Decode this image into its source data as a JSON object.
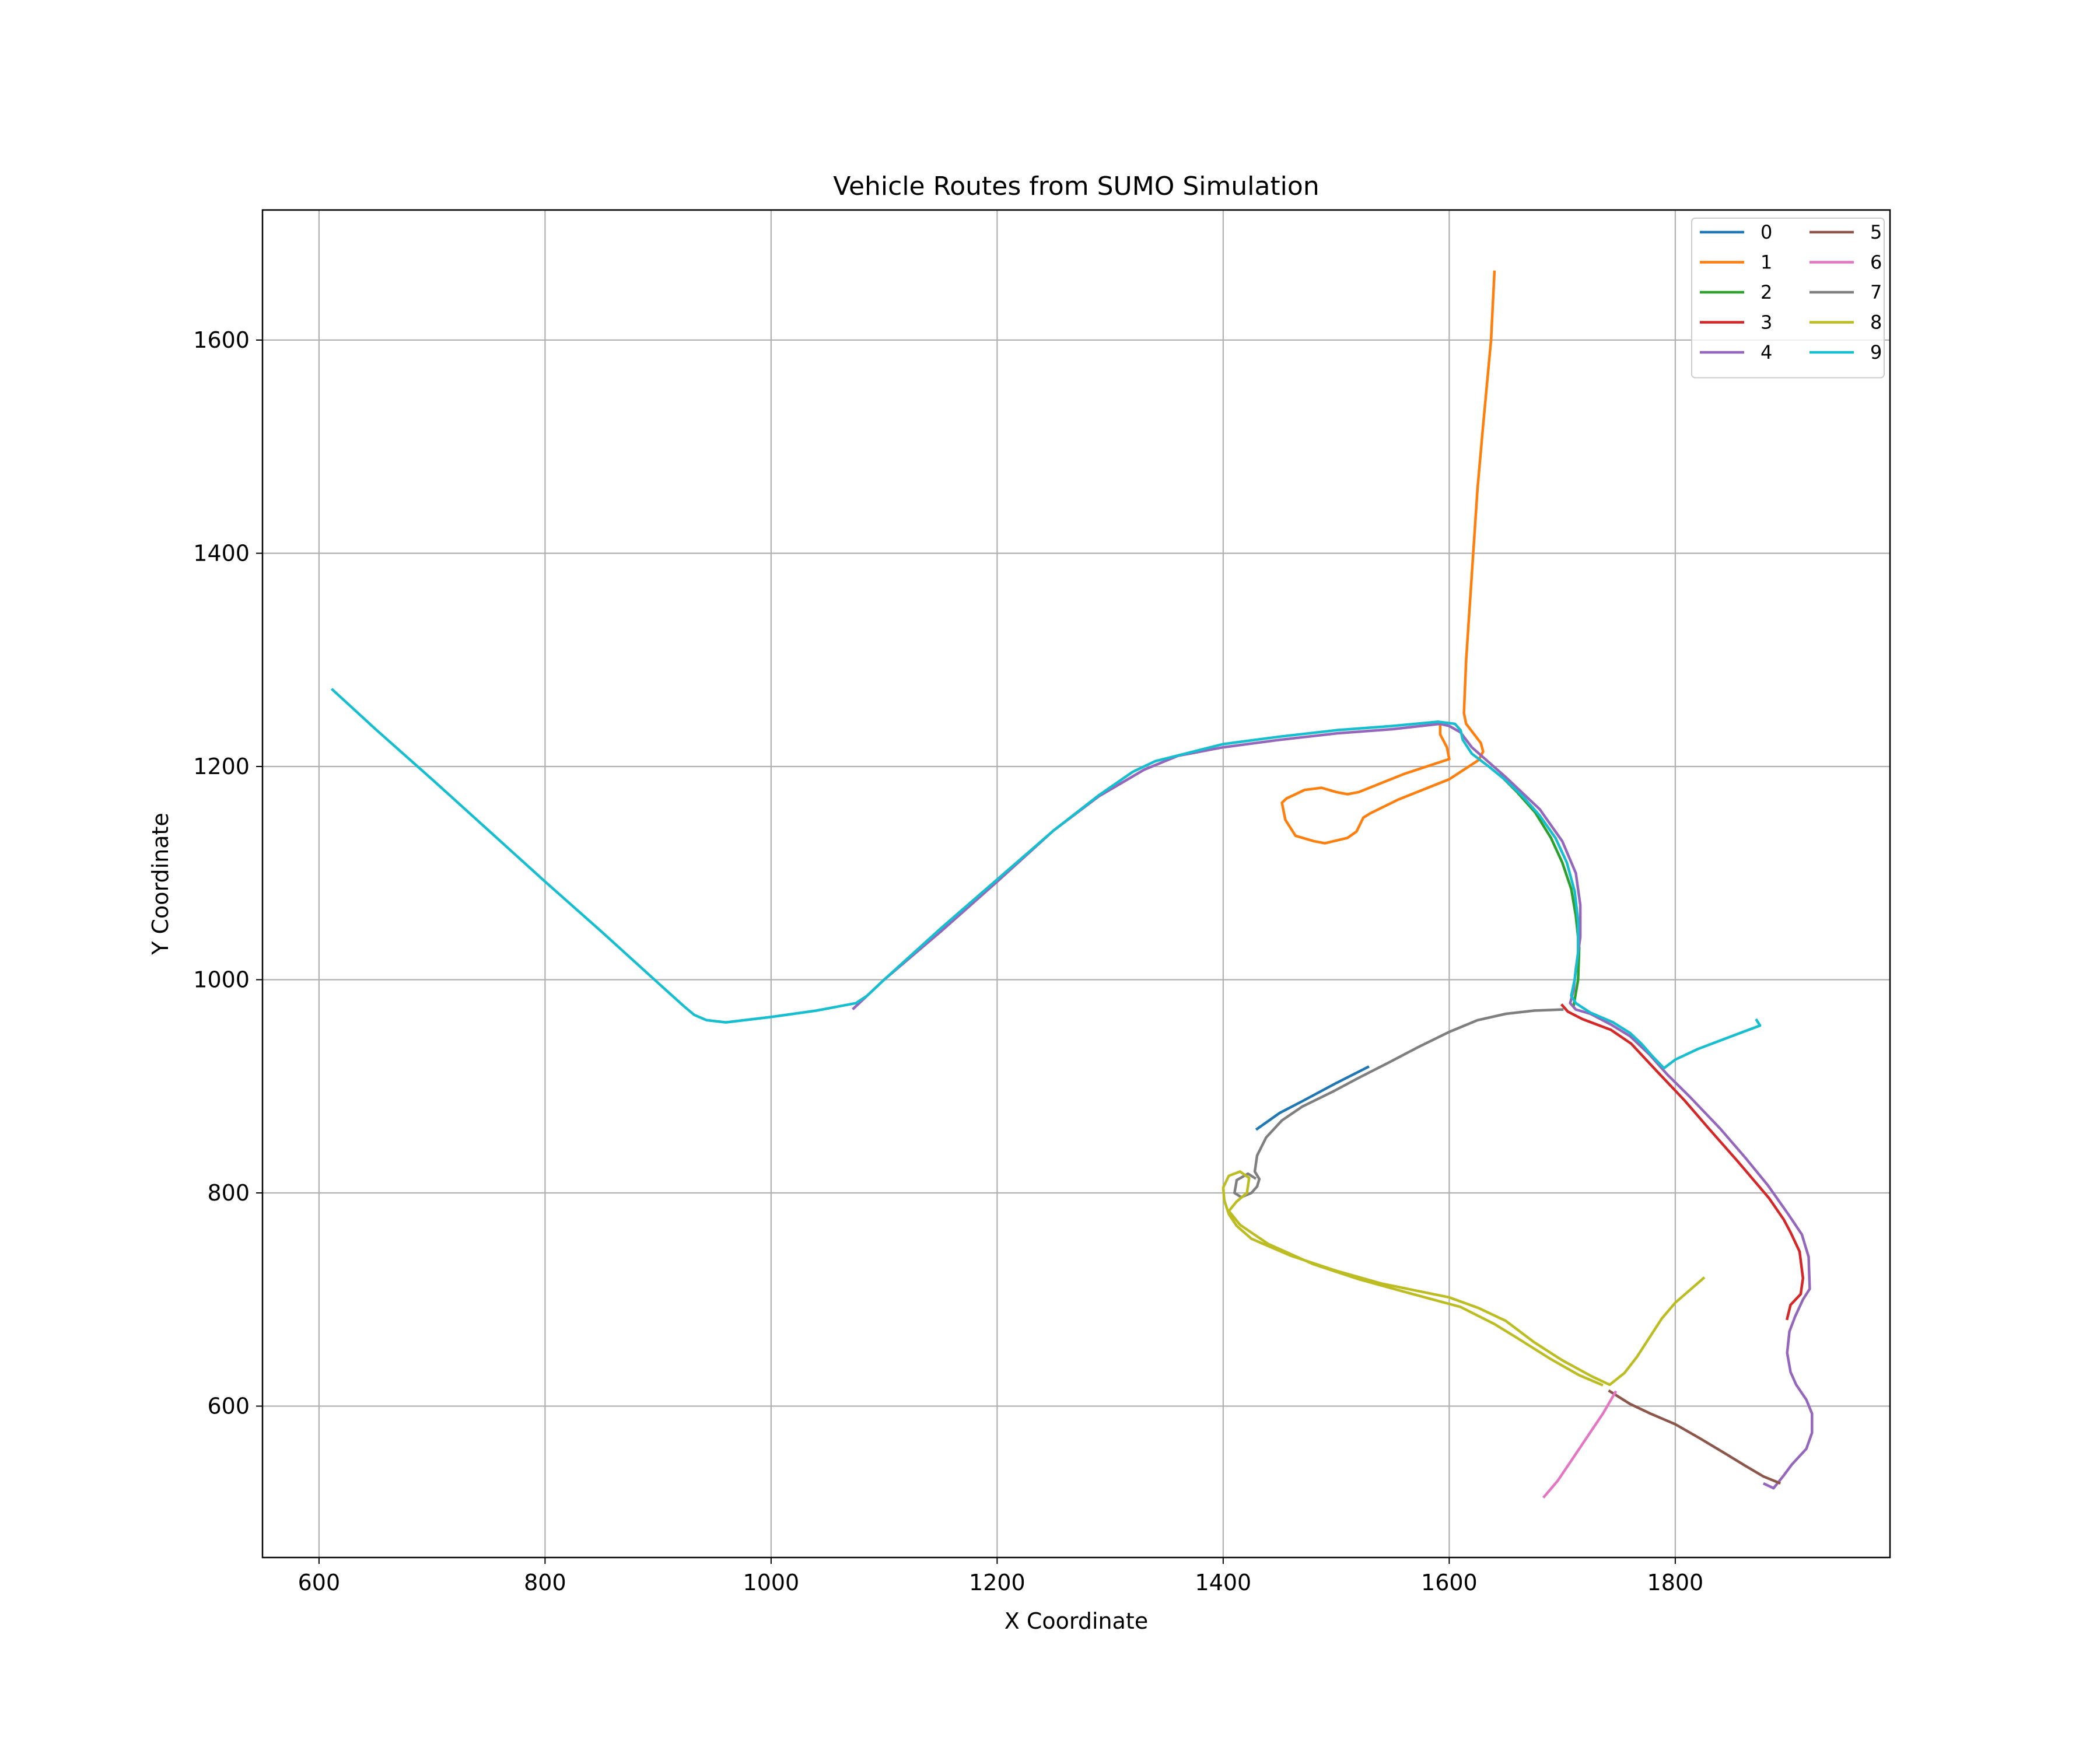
{
  "chart_data": {
    "type": "line",
    "title": "Vehicle Routes from SUMO Simulation",
    "xlabel": "X Coordinate",
    "ylabel": "Y Coordinate",
    "xlim": [
      550,
      1990
    ],
    "ylim": [
      458,
      1722
    ],
    "xticks": [
      600,
      800,
      1000,
      1200,
      1400,
      1600,
      1800
    ],
    "yticks": [
      600,
      800,
      1000,
      1200,
      1400,
      1600
    ],
    "grid": true,
    "legend": {
      "position": "top-right",
      "columns": 2
    },
    "series": [
      {
        "name": "0",
        "color": "#1f77b4",
        "points": [
          [
            1528,
            918
          ],
          [
            1500,
            903
          ],
          [
            1470,
            886
          ],
          [
            1450,
            875
          ],
          [
            1430,
            860
          ]
        ]
      },
      {
        "name": "1",
        "color": "#ff7f0e",
        "points": [
          [
            1640,
            1664
          ],
          [
            1637,
            1600
          ],
          [
            1630,
            1520
          ],
          [
            1625,
            1460
          ],
          [
            1620,
            1380
          ],
          [
            1615,
            1300
          ],
          [
            1613,
            1250
          ],
          [
            1615,
            1240
          ],
          [
            1628,
            1222
          ],
          [
            1630,
            1214
          ],
          [
            1626,
            1206
          ],
          [
            1600,
            1188
          ],
          [
            1555,
            1169
          ],
          [
            1530,
            1156
          ],
          [
            1524,
            1152
          ],
          [
            1518,
            1139
          ],
          [
            1510,
            1133
          ],
          [
            1490,
            1128
          ],
          [
            1480,
            1130
          ],
          [
            1464,
            1135
          ],
          [
            1455,
            1150
          ],
          [
            1452,
            1166
          ],
          [
            1456,
            1170
          ],
          [
            1472,
            1178
          ],
          [
            1487,
            1180
          ],
          [
            1500,
            1176
          ],
          [
            1510,
            1174
          ],
          [
            1520,
            1176
          ],
          [
            1560,
            1193
          ],
          [
            1600,
            1207
          ],
          [
            1598,
            1218
          ],
          [
            1592,
            1230
          ],
          [
            1592,
            1241
          ]
        ]
      },
      {
        "name": "2",
        "color": "#2ca02c",
        "points": [
          [
            1645,
            1192
          ],
          [
            1660,
            1176
          ],
          [
            1676,
            1157
          ],
          [
            1690,
            1133
          ],
          [
            1700,
            1110
          ],
          [
            1708,
            1085
          ],
          [
            1712,
            1060
          ],
          [
            1715,
            1030
          ],
          [
            1714,
            1000
          ],
          [
            1710,
            975
          ]
        ]
      },
      {
        "name": "3",
        "color": "#d62728",
        "points": [
          [
            1700,
            976
          ],
          [
            1705,
            970
          ],
          [
            1718,
            963
          ],
          [
            1743,
            953
          ],
          [
            1761,
            940
          ],
          [
            1783,
            915
          ],
          [
            1808,
            887
          ],
          [
            1830,
            860
          ],
          [
            1855,
            830
          ],
          [
            1883,
            795
          ],
          [
            1896,
            775
          ],
          [
            1902,
            763
          ],
          [
            1910,
            745
          ],
          [
            1913,
            720
          ],
          [
            1911,
            705
          ],
          [
            1902,
            695
          ],
          [
            1899,
            682
          ]
        ]
      },
      {
        "name": "4",
        "color": "#9467bd",
        "points": [
          [
            1073,
            973
          ],
          [
            1080,
            980
          ],
          [
            1100,
            1000
          ],
          [
            1150,
            1045
          ],
          [
            1200,
            1092
          ],
          [
            1250,
            1140
          ],
          [
            1290,
            1172
          ],
          [
            1330,
            1197
          ],
          [
            1360,
            1210
          ],
          [
            1400,
            1218
          ],
          [
            1450,
            1225
          ],
          [
            1500,
            1231
          ],
          [
            1550,
            1235
          ],
          [
            1592,
            1240
          ],
          [
            1600,
            1238
          ],
          [
            1610,
            1232
          ],
          [
            1615,
            1225
          ],
          [
            1620,
            1218
          ],
          [
            1650,
            1190
          ],
          [
            1680,
            1160
          ],
          [
            1700,
            1130
          ],
          [
            1712,
            1100
          ],
          [
            1716,
            1070
          ],
          [
            1716,
            1040
          ],
          [
            1712,
            1010
          ],
          [
            1710,
            990
          ],
          [
            1707,
            978
          ],
          [
            1712,
            972
          ],
          [
            1725,
            968
          ],
          [
            1743,
            958
          ],
          [
            1760,
            947
          ],
          [
            1777,
            930
          ],
          [
            1793,
            911
          ],
          [
            1813,
            890
          ],
          [
            1840,
            860
          ],
          [
            1862,
            833
          ],
          [
            1882,
            807
          ],
          [
            1900,
            780
          ],
          [
            1912,
            761
          ],
          [
            1918,
            740
          ],
          [
            1919,
            710
          ],
          [
            1913,
            700
          ],
          [
            1906,
            684
          ],
          [
            1901,
            670
          ],
          [
            1899,
            650
          ],
          [
            1902,
            632
          ],
          [
            1907,
            620
          ],
          [
            1916,
            606
          ],
          [
            1921,
            593
          ],
          [
            1921,
            575
          ],
          [
            1916,
            560
          ],
          [
            1903,
            545
          ],
          [
            1896,
            535
          ],
          [
            1887,
            523
          ],
          [
            1879,
            527
          ]
        ]
      },
      {
        "name": "5",
        "color": "#8c564b",
        "points": [
          [
            1742,
            614
          ],
          [
            1760,
            602
          ],
          [
            1778,
            593
          ],
          [
            1800,
            583
          ],
          [
            1823,
            569
          ],
          [
            1845,
            555
          ],
          [
            1862,
            544
          ],
          [
            1878,
            534
          ],
          [
            1892,
            528
          ]
        ]
      },
      {
        "name": "6",
        "color": "#e377c2",
        "points": [
          [
            1684,
            515
          ],
          [
            1696,
            530
          ],
          [
            1710,
            552
          ],
          [
            1722,
            571
          ],
          [
            1736,
            593
          ],
          [
            1747,
            613
          ]
        ]
      },
      {
        "name": "7",
        "color": "#7f7f7f",
        "points": [
          [
            1700,
            972
          ],
          [
            1675,
            971
          ],
          [
            1650,
            968
          ],
          [
            1625,
            962
          ],
          [
            1600,
            951
          ],
          [
            1573,
            937
          ],
          [
            1546,
            922
          ],
          [
            1520,
            908
          ],
          [
            1497,
            895
          ],
          [
            1470,
            881
          ],
          [
            1452,
            868
          ],
          [
            1438,
            852
          ],
          [
            1430,
            835
          ],
          [
            1428,
            820
          ],
          [
            1432,
            813
          ],
          [
            1430,
            806
          ],
          [
            1425,
            800
          ],
          [
            1416,
            796
          ],
          [
            1410,
            800
          ],
          [
            1412,
            812
          ],
          [
            1422,
            818
          ],
          [
            1428,
            814
          ]
        ]
      },
      {
        "name": "8",
        "color": "#bcbd22",
        "points": [
          [
            1825,
            720
          ],
          [
            1812,
            708
          ],
          [
            1800,
            697
          ],
          [
            1788,
            682
          ],
          [
            1777,
            664
          ],
          [
            1766,
            646
          ],
          [
            1755,
            631
          ],
          [
            1742,
            620
          ],
          [
            1726,
            628
          ],
          [
            1700,
            643
          ],
          [
            1675,
            660
          ],
          [
            1650,
            680
          ],
          [
            1626,
            692
          ],
          [
            1600,
            702
          ],
          [
            1540,
            715
          ],
          [
            1500,
            727
          ],
          [
            1460,
            741
          ],
          [
            1425,
            757
          ],
          [
            1412,
            769
          ],
          [
            1405,
            780
          ],
          [
            1401,
            793
          ],
          [
            1400,
            805
          ],
          [
            1405,
            816
          ],
          [
            1415,
            820
          ],
          [
            1423,
            814
          ],
          [
            1421,
            800
          ],
          [
            1412,
            792
          ],
          [
            1405,
            783
          ],
          [
            1415,
            770
          ],
          [
            1440,
            752
          ],
          [
            1480,
            733
          ],
          [
            1520,
            719
          ],
          [
            1568,
            705
          ],
          [
            1610,
            693
          ],
          [
            1640,
            677
          ],
          [
            1660,
            664
          ],
          [
            1690,
            644
          ],
          [
            1715,
            629
          ],
          [
            1735,
            620
          ]
        ]
      },
      {
        "name": "9",
        "color": "#17becf",
        "points": [
          [
            612,
            1272
          ],
          [
            650,
            1235
          ],
          [
            700,
            1188
          ],
          [
            750,
            1140
          ],
          [
            800,
            1092
          ],
          [
            850,
            1045
          ],
          [
            900,
            997
          ],
          [
            923,
            975
          ],
          [
            932,
            967
          ],
          [
            943,
            962
          ],
          [
            960,
            960
          ],
          [
            1000,
            965
          ],
          [
            1040,
            971
          ],
          [
            1060,
            975
          ],
          [
            1075,
            978
          ],
          [
            1085,
            985
          ],
          [
            1100,
            1000
          ],
          [
            1150,
            1048
          ],
          [
            1200,
            1094
          ],
          [
            1250,
            1140
          ],
          [
            1290,
            1173
          ],
          [
            1320,
            1195
          ],
          [
            1340,
            1205
          ],
          [
            1370,
            1213
          ],
          [
            1400,
            1221
          ],
          [
            1450,
            1228
          ],
          [
            1500,
            1234
          ],
          [
            1550,
            1238
          ],
          [
            1590,
            1242
          ],
          [
            1605,
            1240
          ],
          [
            1610,
            1234
          ],
          [
            1612,
            1225
          ],
          [
            1620,
            1212
          ],
          [
            1635,
            1200
          ],
          [
            1650,
            1187
          ],
          [
            1665,
            1172
          ],
          [
            1680,
            1154
          ],
          [
            1694,
            1133
          ],
          [
            1704,
            1110
          ],
          [
            1711,
            1083
          ],
          [
            1714,
            1055
          ],
          [
            1714,
            1025
          ],
          [
            1711,
            1000
          ],
          [
            1708,
            985
          ],
          [
            1712,
            978
          ],
          [
            1725,
            969
          ],
          [
            1745,
            960
          ],
          [
            1760,
            950
          ],
          [
            1770,
            940
          ],
          [
            1780,
            928
          ],
          [
            1790,
            917
          ],
          [
            1800,
            925
          ],
          [
            1820,
            935
          ],
          [
            1840,
            943
          ],
          [
            1860,
            951
          ],
          [
            1875,
            957
          ],
          [
            1872,
            962
          ]
        ]
      }
    ]
  }
}
